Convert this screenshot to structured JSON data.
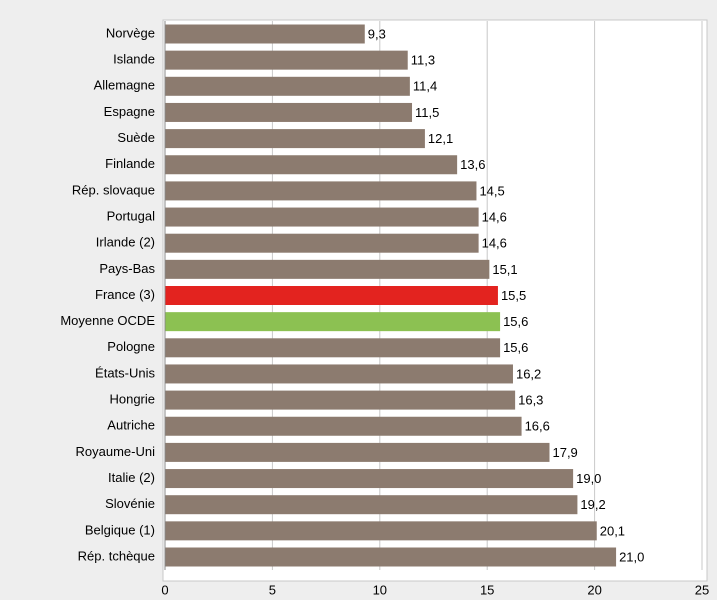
{
  "chart_data": {
    "type": "barh",
    "categories": [
      "Norvège",
      "Islande",
      "Allemagne",
      "Espagne",
      "Suède",
      "Finlande",
      "Rép. slovaque",
      "Portugal",
      "Irlande (2)",
      "Pays-Bas",
      "France (3)",
      "Moyenne OCDE",
      "Pologne",
      "États-Unis",
      "Hongrie",
      "Autriche",
      "Royaume-Uni",
      "Italie (2)",
      "Slovénie",
      "Belgique (1)",
      "Rép. tchèque"
    ],
    "values": [
      9.3,
      11.3,
      11.4,
      11.5,
      12.1,
      13.6,
      14.5,
      14.6,
      14.6,
      15.1,
      15.5,
      15.6,
      15.6,
      16.2,
      16.3,
      16.6,
      17.9,
      19.0,
      19.2,
      20.1,
      21.0
    ],
    "value_labels": [
      "9,3",
      "11,3",
      "11,4",
      "11,5",
      "12,1",
      "13,6",
      "14,5",
      "14,6",
      "14,6",
      "15,1",
      "15,5",
      "15,6",
      "15,6",
      "16,2",
      "16,3",
      "16,6",
      "17,9",
      "19,0",
      "19,2",
      "20,1",
      "21,0"
    ],
    "colors": [
      "#8c7b6f",
      "#8c7b6f",
      "#8c7b6f",
      "#8c7b6f",
      "#8c7b6f",
      "#8c7b6f",
      "#8c7b6f",
      "#8c7b6f",
      "#8c7b6f",
      "#8c7b6f",
      "#e3231f",
      "#8cc152",
      "#8c7b6f",
      "#8c7b6f",
      "#8c7b6f",
      "#8c7b6f",
      "#8c7b6f",
      "#8c7b6f",
      "#8c7b6f",
      "#8c7b6f",
      "#8c7b6f"
    ],
    "xlim": [
      0,
      25
    ],
    "xticks": [
      0,
      5,
      10,
      15,
      20,
      25
    ],
    "grid": true
  }
}
